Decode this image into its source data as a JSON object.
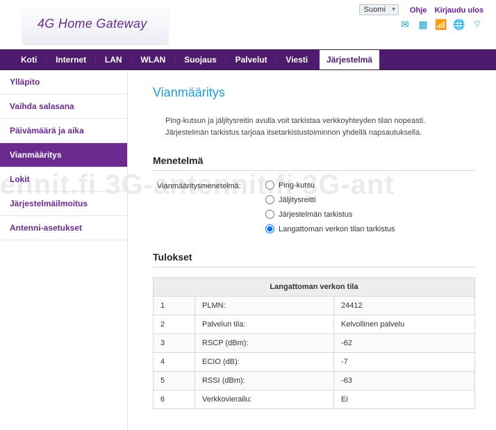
{
  "top": {
    "language": "Suomi",
    "help": "Ohje",
    "logout": "Kirjaudu ulos"
  },
  "logo": "4G Home Gateway",
  "nav": {
    "items": [
      "Koti",
      "Internet",
      "LAN",
      "WLAN",
      "Suojaus",
      "Palvelut",
      "Viesti",
      "Järjestelmä"
    ],
    "active_index": 7
  },
  "sidebar": {
    "items": [
      "Ylläpito",
      "Vaihda salasana",
      "Päivämäärä ja aika",
      "Vianmääritys",
      "Lokit",
      "Järjestelmäilmoitus",
      "Antenni-asetukset"
    ],
    "active_index": 3
  },
  "page": {
    "title": "Vianmääritys",
    "intro": "Ping-kutsun ja jäljitysreitin avulla voit tarkistaa verkkoyhteyden tilan nopeasti. Järjestelmän tarkistus tarjoaa itsetarkistustoiminnon yhdellä napsautuksella.",
    "method_section": "Menetelmä",
    "method_label": "Vianmääritysmenetelmä:",
    "methods": [
      "Ping-kutsu",
      "Jäljitysreitti",
      "Järjestelmän tarkistus",
      "Langattoman verkon tilan tarkistus"
    ],
    "method_selected_index": 3,
    "results_section": "Tulokset",
    "results_header": "Langattoman verkon tila",
    "rows": [
      {
        "n": "1",
        "k": "PLMN:",
        "v": "24412"
      },
      {
        "n": "2",
        "k": "Palvelun tila:",
        "v": "Kelvollinen palvelu"
      },
      {
        "n": "3",
        "k": "RSCP (dBm):",
        "v": "-62"
      },
      {
        "n": "4",
        "k": "ECIO (dB):",
        "v": "-7"
      },
      {
        "n": "5",
        "k": "RSSI (dBm):",
        "v": "-63"
      },
      {
        "n": "6",
        "k": "Verkkovierailu:",
        "v": "Ei"
      }
    ]
  },
  "watermark": "ennit.fi 3G-antennit.fi 3G-ant",
  "colors": {
    "brand_purple": "#6b2a90",
    "nav_purple": "#4d1a6d",
    "title_cyan": "#1ba0d8",
    "border_gray": "#d8d8d8",
    "table_header_bg": "#ededed"
  }
}
